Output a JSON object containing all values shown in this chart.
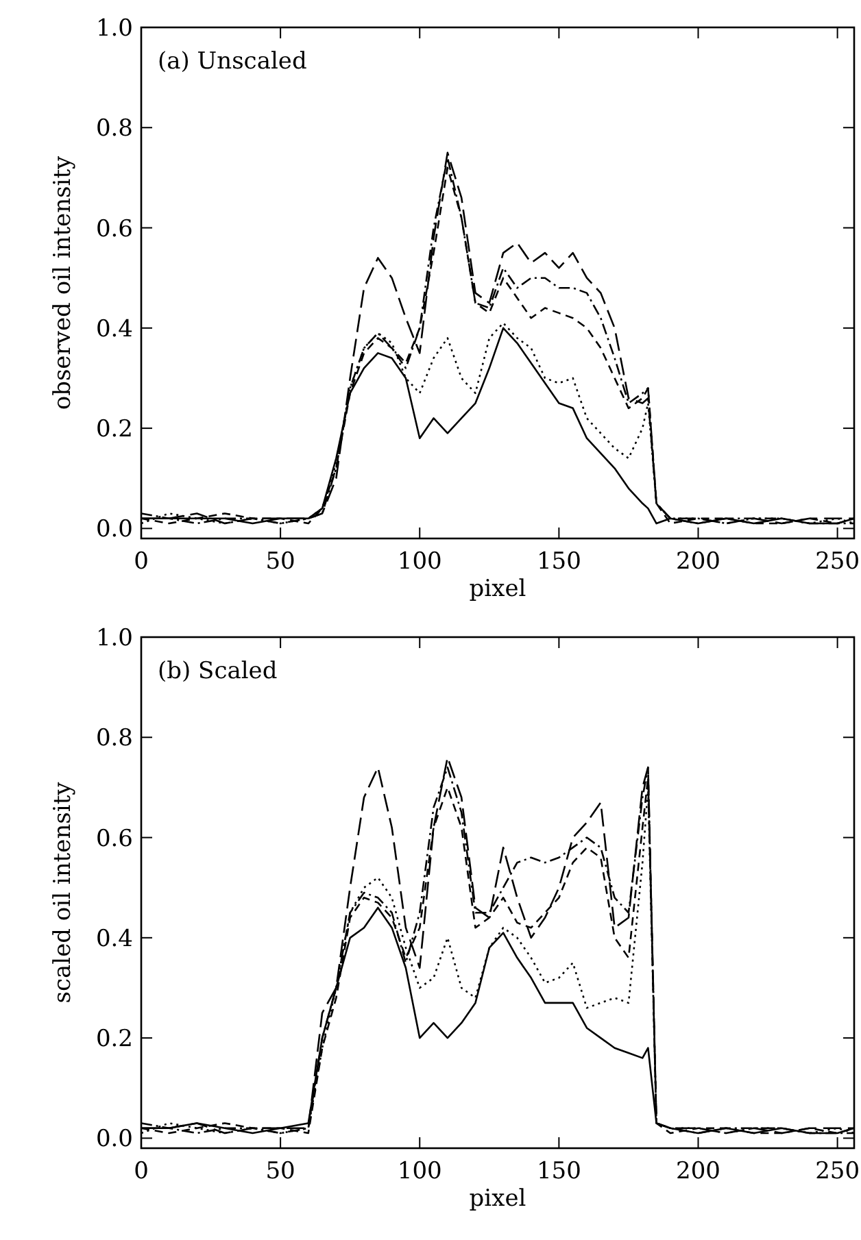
{
  "chart_data": [
    {
      "type": "line",
      "annotations": [
        "(a) Unscaled"
      ],
      "xlabel": "pixel",
      "ylabel": "observed oil intensity",
      "xlim": [
        0,
        256
      ],
      "ylim": [
        -0.02,
        1.0
      ],
      "xticks": [
        0,
        50,
        100,
        150,
        200,
        250
      ],
      "yticks": [
        {
          "value": 0,
          "label": "0.0"
        },
        {
          "value": 0.2,
          "label": "0.2"
        },
        {
          "value": 0.4,
          "label": "0.4"
        },
        {
          "value": 0.6,
          "label": "0.6"
        },
        {
          "value": 0.8,
          "label": "0.8"
        },
        {
          "value": 1,
          "label": "1.0"
        }
      ],
      "x": [
        0,
        10,
        20,
        30,
        40,
        50,
        60,
        65,
        70,
        75,
        80,
        85,
        90,
        95,
        100,
        105,
        110,
        115,
        120,
        125,
        130,
        135,
        140,
        145,
        150,
        155,
        160,
        165,
        170,
        175,
        180,
        182,
        185,
        190,
        200,
        210,
        220,
        230,
        240,
        250,
        256
      ],
      "series": [
        {
          "color": "#000000",
          "line_style": "solid",
          "values": [
            0.02,
            0.02,
            0.02,
            0.02,
            0.01,
            0.02,
            0.02,
            0.04,
            0.14,
            0.27,
            0.32,
            0.35,
            0.34,
            0.3,
            0.18,
            0.22,
            0.19,
            0.22,
            0.25,
            0.32,
            0.4,
            0.37,
            0.33,
            0.29,
            0.25,
            0.24,
            0.18,
            0.15,
            0.12,
            0.08,
            0.05,
            0.04,
            0.01,
            0.02,
            0.01,
            0.02,
            0.01,
            0.02,
            0.01,
            0.01,
            0.02
          ]
        },
        {
          "color": "#000000",
          "line_style": "dotted",
          "values": [
            0.01,
            0.03,
            0.02,
            0.01,
            0.02,
            0.01,
            0.02,
            0.04,
            0.13,
            0.28,
            0.36,
            0.39,
            0.37,
            0.3,
            0.27,
            0.34,
            0.38,
            0.3,
            0.27,
            0.38,
            0.41,
            0.38,
            0.36,
            0.3,
            0.29,
            0.3,
            0.22,
            0.19,
            0.16,
            0.14,
            0.2,
            0.25,
            0.05,
            0.02,
            0.02,
            0.01,
            0.02,
            0.02,
            0.01,
            0.02,
            0.01
          ]
        },
        {
          "color": "#000000",
          "line_style": "dashed",
          "values": [
            0.02,
            0.01,
            0.02,
            0.03,
            0.02,
            0.02,
            0.01,
            0.04,
            0.12,
            0.27,
            0.35,
            0.38,
            0.36,
            0.33,
            0.4,
            0.55,
            0.72,
            0.62,
            0.45,
            0.43,
            0.5,
            0.46,
            0.42,
            0.44,
            0.43,
            0.42,
            0.4,
            0.36,
            0.3,
            0.24,
            0.26,
            0.28,
            0.05,
            0.01,
            0.02,
            0.02,
            0.01,
            0.01,
            0.02,
            0.01,
            0.02
          ]
        },
        {
          "color": "#000000",
          "line_style": "dashdot",
          "values": [
            0.03,
            0.02,
            0.01,
            0.02,
            0.02,
            0.01,
            0.02,
            0.03,
            0.12,
            0.28,
            0.36,
            0.39,
            0.36,
            0.32,
            0.4,
            0.6,
            0.74,
            0.62,
            0.45,
            0.44,
            0.52,
            0.48,
            0.5,
            0.5,
            0.48,
            0.48,
            0.47,
            0.42,
            0.34,
            0.25,
            0.27,
            0.28,
            0.05,
            0.02,
            0.01,
            0.02,
            0.02,
            0.02,
            0.01,
            0.01,
            0.01
          ]
        },
        {
          "color": "#000000",
          "line_style": "longdash",
          "values": [
            0.02,
            0.02,
            0.03,
            0.01,
            0.02,
            0.02,
            0.02,
            0.03,
            0.1,
            0.3,
            0.48,
            0.54,
            0.5,
            0.42,
            0.35,
            0.58,
            0.75,
            0.66,
            0.47,
            0.45,
            0.55,
            0.57,
            0.53,
            0.55,
            0.52,
            0.55,
            0.5,
            0.47,
            0.4,
            0.26,
            0.25,
            0.26,
            0.05,
            0.02,
            0.02,
            0.01,
            0.02,
            0.01,
            0.02,
            0.02,
            0.02
          ]
        }
      ]
    },
    {
      "type": "line",
      "annotations": [
        "(b) Scaled"
      ],
      "xlabel": "pixel",
      "ylabel": "scaled oil intensity",
      "xlim": [
        0,
        256
      ],
      "ylim": [
        -0.02,
        1.0
      ],
      "xticks": [
        0,
        50,
        100,
        150,
        200,
        250
      ],
      "yticks": [
        {
          "value": 0,
          "label": "0.0"
        },
        {
          "value": 0.2,
          "label": "0.2"
        },
        {
          "value": 0.4,
          "label": "0.4"
        },
        {
          "value": 0.6,
          "label": "0.6"
        },
        {
          "value": 0.8,
          "label": "0.8"
        },
        {
          "value": 1,
          "label": "1.0"
        }
      ],
      "x": [
        0,
        10,
        20,
        30,
        40,
        50,
        60,
        65,
        70,
        75,
        80,
        85,
        90,
        95,
        100,
        105,
        110,
        115,
        120,
        125,
        130,
        135,
        140,
        145,
        150,
        155,
        160,
        165,
        170,
        175,
        180,
        182,
        185,
        190,
        200,
        210,
        220,
        230,
        240,
        250,
        256
      ],
      "series": [
        {
          "color": "#000000",
          "line_style": "solid",
          "values": [
            0.02,
            0.02,
            0.03,
            0.02,
            0.01,
            0.02,
            0.03,
            0.2,
            0.3,
            0.4,
            0.42,
            0.46,
            0.42,
            0.34,
            0.2,
            0.23,
            0.2,
            0.23,
            0.27,
            0.38,
            0.41,
            0.36,
            0.32,
            0.27,
            0.27,
            0.27,
            0.22,
            0.2,
            0.18,
            0.17,
            0.16,
            0.18,
            0.03,
            0.02,
            0.01,
            0.02,
            0.01,
            0.02,
            0.01,
            0.01,
            0.02
          ]
        },
        {
          "color": "#000000",
          "line_style": "dotted",
          "values": [
            0.01,
            0.03,
            0.02,
            0.01,
            0.02,
            0.01,
            0.02,
            0.18,
            0.3,
            0.45,
            0.5,
            0.52,
            0.48,
            0.38,
            0.3,
            0.32,
            0.4,
            0.3,
            0.28,
            0.38,
            0.42,
            0.4,
            0.36,
            0.31,
            0.32,
            0.35,
            0.26,
            0.27,
            0.28,
            0.27,
            0.55,
            0.7,
            0.03,
            0.02,
            0.02,
            0.01,
            0.02,
            0.02,
            0.01,
            0.02,
            0.01
          ]
        },
        {
          "color": "#000000",
          "line_style": "dashed",
          "values": [
            0.02,
            0.01,
            0.02,
            0.03,
            0.02,
            0.02,
            0.01,
            0.18,
            0.28,
            0.44,
            0.48,
            0.47,
            0.44,
            0.36,
            0.42,
            0.62,
            0.7,
            0.62,
            0.42,
            0.44,
            0.48,
            0.43,
            0.42,
            0.45,
            0.48,
            0.55,
            0.58,
            0.56,
            0.4,
            0.36,
            0.62,
            0.72,
            0.03,
            0.01,
            0.02,
            0.02,
            0.01,
            0.01,
            0.02,
            0.01,
            0.02
          ]
        },
        {
          "color": "#000000",
          "line_style": "dashdot",
          "values": [
            0.03,
            0.02,
            0.01,
            0.02,
            0.02,
            0.01,
            0.02,
            0.2,
            0.3,
            0.45,
            0.49,
            0.48,
            0.45,
            0.35,
            0.45,
            0.66,
            0.74,
            0.65,
            0.45,
            0.45,
            0.5,
            0.55,
            0.56,
            0.55,
            0.56,
            0.58,
            0.6,
            0.58,
            0.48,
            0.45,
            0.68,
            0.74,
            0.03,
            0.02,
            0.01,
            0.02,
            0.02,
            0.02,
            0.01,
            0.01,
            0.01
          ]
        },
        {
          "color": "#000000",
          "line_style": "longdash",
          "values": [
            0.02,
            0.02,
            0.03,
            0.01,
            0.02,
            0.02,
            0.02,
            0.25,
            0.3,
            0.5,
            0.68,
            0.74,
            0.62,
            0.42,
            0.34,
            0.62,
            0.76,
            0.68,
            0.46,
            0.44,
            0.58,
            0.48,
            0.4,
            0.44,
            0.5,
            0.6,
            0.63,
            0.67,
            0.42,
            0.44,
            0.7,
            0.74,
            0.03,
            0.02,
            0.02,
            0.01,
            0.02,
            0.01,
            0.02,
            0.02,
            0.02
          ]
        }
      ]
    }
  ]
}
